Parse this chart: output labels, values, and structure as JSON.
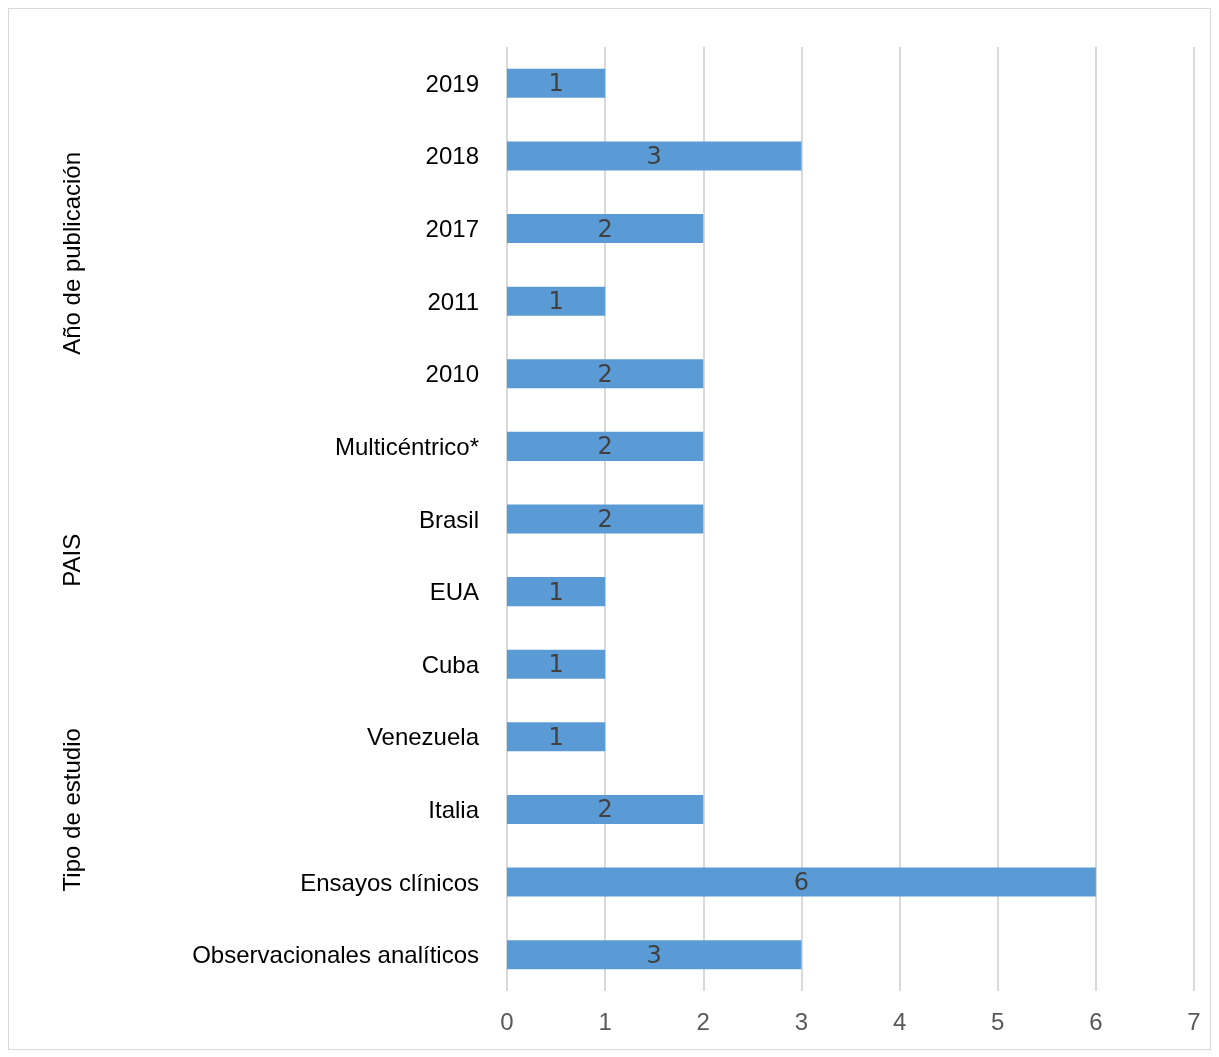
{
  "chart_data": {
    "type": "bar",
    "orientation": "horizontal",
    "categories": [
      "2019",
      "2018",
      "2017",
      "2011",
      "2010",
      "Multicéntrico*",
      "Brasil",
      "EUA",
      "Cuba",
      "Venezuela",
      "Italia",
      "Ensayos clínicos",
      "Observacionales analíticos"
    ],
    "values": [
      1,
      3,
      2,
      1,
      2,
      2,
      2,
      1,
      1,
      1,
      2,
      6,
      3
    ],
    "color": "#5b9bd5",
    "data_labels": true,
    "xlim": [
      0,
      7
    ],
    "xticks": [
      0,
      1,
      2,
      3,
      4,
      5,
      6,
      7
    ],
    "grid": "x",
    "annotations": [
      "Año de publicación",
      "PAIS",
      "Tipo de estudio"
    ]
  }
}
